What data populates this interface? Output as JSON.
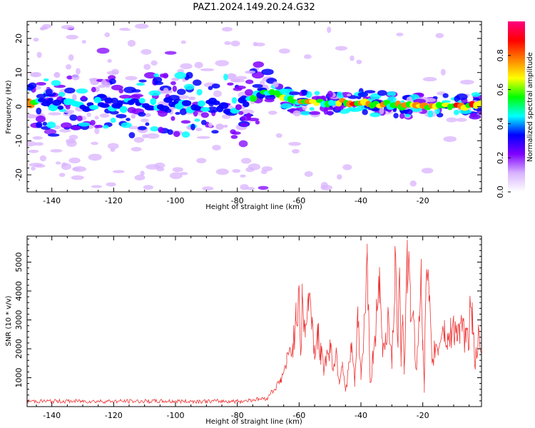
{
  "figure": {
    "title": "PAZ1.2024.149.20.24.G32"
  },
  "chart_data": [
    {
      "type": "heatmap",
      "xlabel": "Height of straight line (km)",
      "ylabel": "Frequency (Hz)",
      "xlim": [
        -148,
        -1
      ],
      "ylim": [
        -25,
        25
      ],
      "x_ticks": [
        -140,
        -120,
        -100,
        -80,
        -60,
        -40,
        -20
      ],
      "y_ticks": [
        -20,
        -10,
        0,
        10,
        20
      ],
      "colorbar": {
        "label": "Normalized spectral amplitude",
        "range": [
          0.0,
          1.0
        ],
        "ticks": [
          0.0,
          0.2,
          0.4,
          0.6,
          0.8
        ],
        "colormap": [
          "#ffffff",
          "#d9b3ff",
          "#8000ff",
          "#0000ff",
          "#00ffff",
          "#00ff00",
          "#ffff00",
          "#ff8000",
          "#ff0000",
          "#ff0080"
        ]
      },
      "peak_track": [
        {
          "x": -145,
          "y": 0.5,
          "amp": 0.5
        },
        {
          "x": -120,
          "y": 0.5,
          "amp": 0.5
        },
        {
          "x": -100,
          "y": 0.5,
          "amp": 0.5
        },
        {
          "x": -80,
          "y": 0.0,
          "amp": 0.45
        },
        {
          "x": -70,
          "y": 5.0,
          "amp": 0.6
        },
        {
          "x": -60,
          "y": 1.0,
          "amp": 0.8
        },
        {
          "x": -45,
          "y": 1.5,
          "amp": 0.85
        },
        {
          "x": -30,
          "y": 0.5,
          "amp": 0.8
        },
        {
          "x": -12,
          "y": 0.0,
          "amp": 0.95
        },
        {
          "x": -2,
          "y": 0.5,
          "amp": 0.85
        }
      ]
    },
    {
      "type": "line",
      "xlabel": "Height of straight line (km)",
      "ylabel": "SNR (10 * v/v)",
      "xlim": [
        -148,
        -1
      ],
      "ylim": [
        0,
        5900
      ],
      "x_ticks": [
        -140,
        -120,
        -100,
        -80,
        -60,
        -40,
        -20
      ],
      "y_ticks": [
        1000,
        2000,
        3000,
        4000,
        5000
      ],
      "color": "#ee3333",
      "series": [
        {
          "x": [
            -148,
            -140,
            -130,
            -120,
            -110,
            -100,
            -90,
            -80,
            -75,
            -72,
            -70,
            -68,
            -66,
            -64,
            -62,
            -61,
            -60,
            -59.5,
            -59,
            -58,
            -57,
            -56,
            -55,
            -54,
            -53,
            -52,
            -50,
            -49,
            -48,
            -47,
            -46,
            -45,
            -44,
            -43,
            -42,
            -41,
            -40,
            -39,
            -38,
            -37,
            -36,
            -35,
            -34,
            -33,
            -32,
            -31,
            -30,
            -29,
            -28,
            -27.5,
            -27,
            -26.5,
            -26,
            -25,
            -24,
            -23,
            -22,
            -21,
            -20.5,
            -20,
            -19.5,
            -19,
            -18,
            -17,
            -16,
            -15,
            -14,
            -13,
            -12,
            -11,
            -10,
            -9,
            -8,
            -7,
            -6,
            -5,
            -4.5,
            -4,
            -3,
            -2,
            -1
          ],
          "y": [
            200,
            180,
            170,
            190,
            175,
            180,
            190,
            210,
            280,
            300,
            400,
            600,
            900,
            1500,
            2200,
            2900,
            4500,
            1800,
            3500,
            2700,
            3600,
            3300,
            1900,
            2500,
            1800,
            1400,
            2100,
            1400,
            1900,
            900,
            1600,
            500,
            1300,
            2000,
            800,
            3000,
            1100,
            2700,
            5200,
            700,
            1900,
            3000,
            4000,
            2000,
            2400,
            3300,
            1300,
            4700,
            2500,
            5900,
            1500,
            3400,
            1300,
            5000,
            3600,
            2800,
            1400,
            3000,
            5300,
            2400,
            600,
            4200,
            3800,
            1300,
            2100,
            2000,
            2700,
            2600,
            2300,
            2500,
            2800,
            2700,
            2400,
            2700,
            2200,
            2500,
            4300,
            3000,
            1500,
            2300,
            1600
          ]
        }
      ]
    }
  ]
}
